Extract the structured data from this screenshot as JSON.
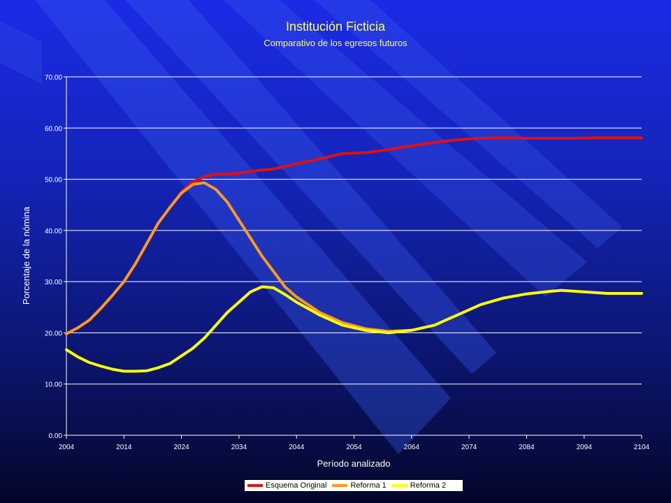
{
  "chart_data": {
    "type": "line",
    "title": "Institución Ficticia",
    "subtitle": "Comparativo de los egresos futuros",
    "xlabel": "Período analizado",
    "ylabel": "Porcentaje de la nómina",
    "xlim": [
      2004,
      2104
    ],
    "ylim": [
      0,
      70
    ],
    "x_ticks": [
      "2004",
      "2014",
      "2024",
      "2034",
      "2044",
      "2054",
      "2064",
      "2074",
      "2084",
      "2094",
      "2104"
    ],
    "y_ticks": [
      "0.00",
      "10.00",
      "20.00",
      "30.00",
      "40.00",
      "50.00",
      "60.00",
      "70.00"
    ],
    "grid": "horizontal",
    "legend_position": "bottom",
    "series": [
      {
        "name": "Esquema Original",
        "color": "#e01010",
        "x": [
          2004,
          2006,
          2008,
          2010,
          2012,
          2014,
          2016,
          2018,
          2020,
          2022,
          2024,
          2026,
          2028,
          2030,
          2032,
          2034,
          2036,
          2038,
          2040,
          2044,
          2048,
          2052,
          2056,
          2060,
          2064,
          2068,
          2072,
          2076,
          2080,
          2084,
          2088,
          2092,
          2096,
          2100,
          2104
        ],
        "y": [
          19.8,
          21,
          22.5,
          24.8,
          27.3,
          30,
          33.5,
          37.5,
          41.5,
          44.5,
          47.5,
          49.5,
          50.5,
          51,
          51,
          51.2,
          51.5,
          51.8,
          52,
          53,
          54,
          55,
          55.2,
          55.8,
          56.5,
          57.2,
          57.7,
          58,
          58.1,
          58,
          58,
          58,
          58.1,
          58.1,
          58.1
        ]
      },
      {
        "name": "Reforma 1",
        "color": "#ff9922",
        "x": [
          2004,
          2006,
          2008,
          2010,
          2012,
          2014,
          2016,
          2018,
          2020,
          2022,
          2024,
          2026,
          2028,
          2030,
          2032,
          2034,
          2036,
          2038,
          2040,
          2042,
          2044,
          2048,
          2052,
          2056,
          2060,
          2064
        ],
        "y": [
          19.8,
          21,
          22.5,
          24.8,
          27.3,
          30,
          33.5,
          37.5,
          41.5,
          44.5,
          47.3,
          49,
          49.3,
          48,
          45.5,
          42,
          38.5,
          35,
          32,
          29,
          27,
          24,
          22,
          20.8,
          20.3,
          20.5
        ]
      },
      {
        "name": "Reforma 2",
        "color": "#ffff00",
        "x": [
          2004,
          2006,
          2008,
          2010,
          2012,
          2014,
          2016,
          2018,
          2020,
          2022,
          2024,
          2026,
          2028,
          2030,
          2032,
          2034,
          2036,
          2038,
          2040,
          2042,
          2044,
          2048,
          2052,
          2056,
          2060,
          2064,
          2068,
          2072,
          2076,
          2080,
          2084,
          2088,
          2090,
          2094,
          2098,
          2104
        ],
        "y": [
          16.7,
          15.3,
          14.2,
          13.5,
          12.9,
          12.5,
          12.5,
          12.6,
          13.2,
          14,
          15.5,
          17,
          19,
          21.5,
          24,
          26,
          28,
          29,
          28.8,
          27.5,
          26,
          23.5,
          21.5,
          20.5,
          20,
          20.5,
          21.5,
          23.5,
          25.5,
          26.8,
          27.6,
          28.1,
          28.3,
          28,
          27.7,
          27.7
        ]
      }
    ]
  }
}
